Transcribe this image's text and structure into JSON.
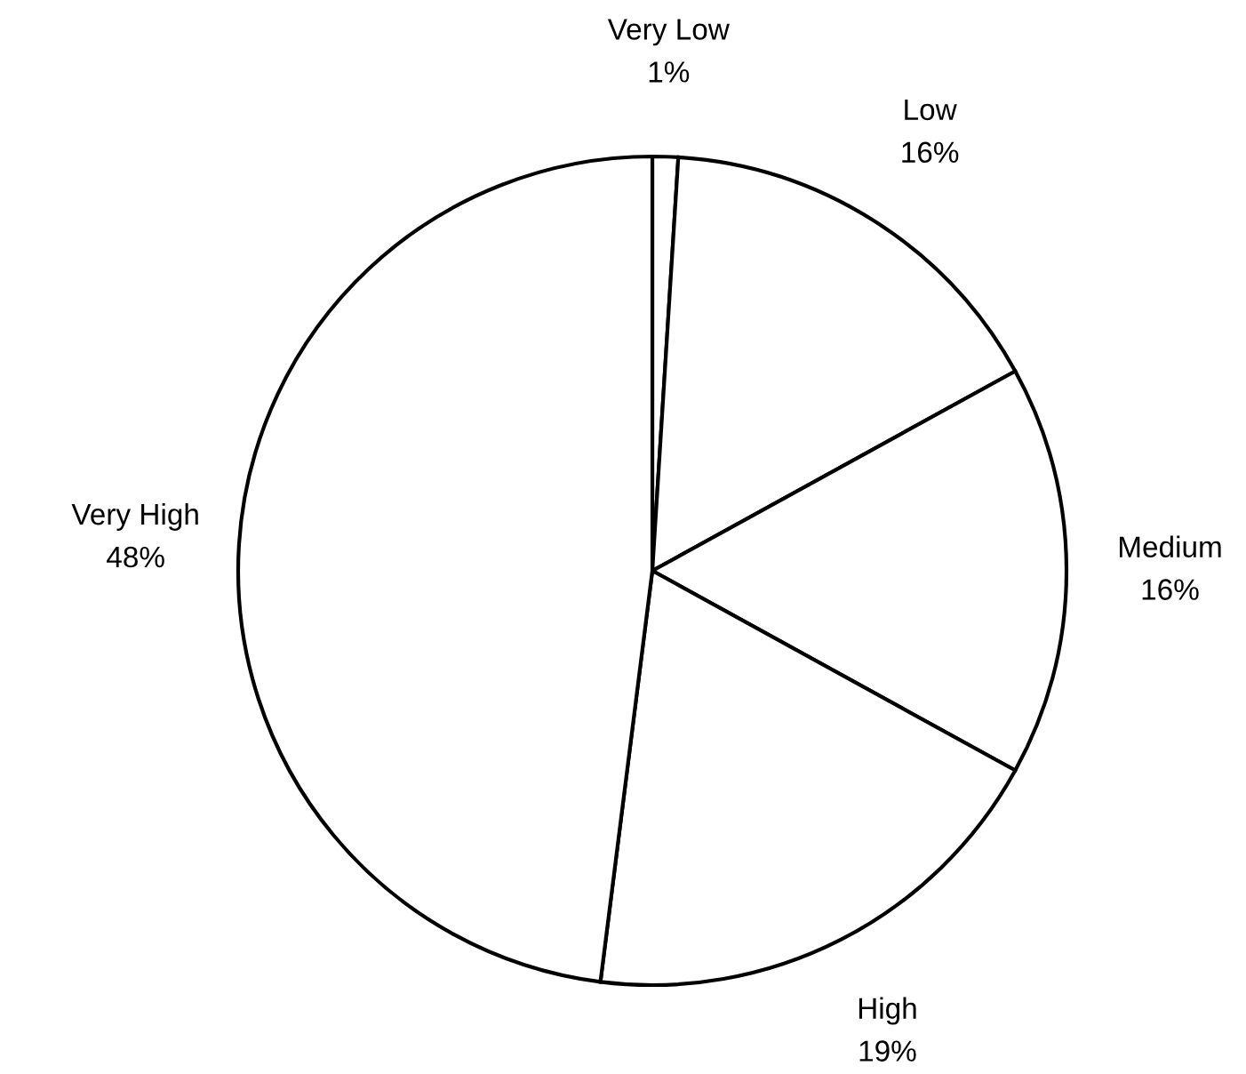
{
  "chart_data": {
    "type": "pie",
    "categories": [
      "Very Low",
      "Low",
      "Medium",
      "High",
      "Very High"
    ],
    "values": [
      1,
      16,
      16,
      19,
      48
    ],
    "value_labels": [
      "1%",
      "16%",
      "16%",
      "19%",
      "48%"
    ],
    "colors": [
      "#ffffff",
      "#ffffff",
      "#ffffff",
      "#ffffff",
      "#ffffff"
    ]
  }
}
